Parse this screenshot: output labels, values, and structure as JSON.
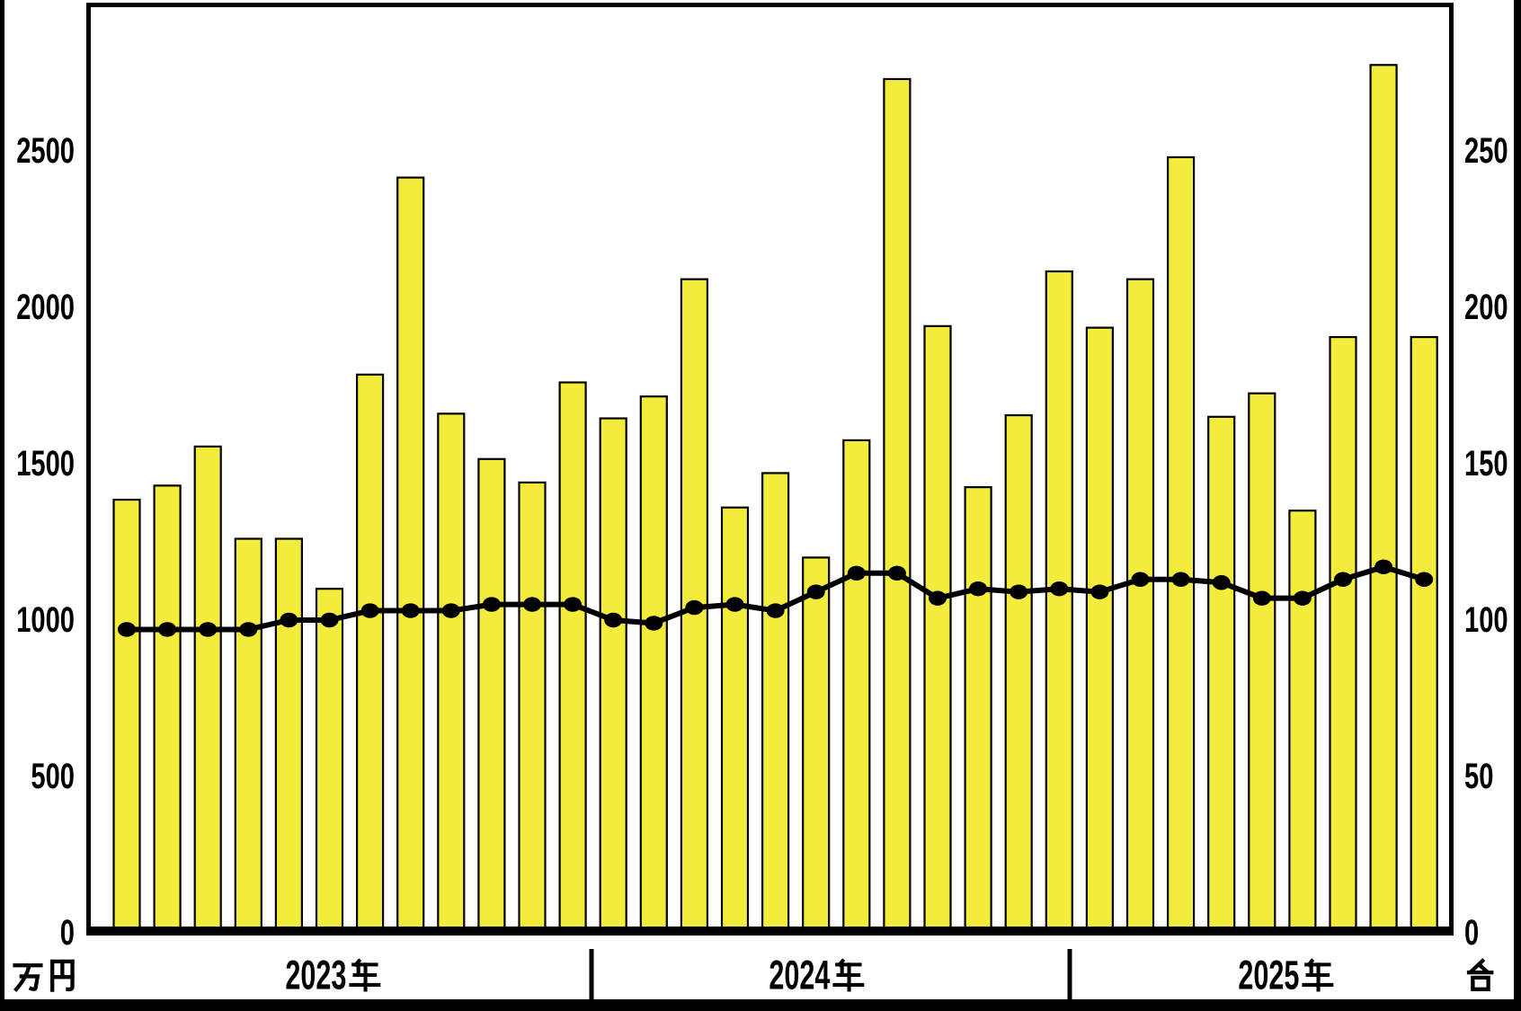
{
  "chart_data": {
    "type": "bar+line",
    "title": "",
    "left_axis": {
      "unit": "万円",
      "ticks": [
        0,
        500,
        1000,
        1500,
        2000,
        2500
      ],
      "min": 0,
      "max": 2970
    },
    "right_axis": {
      "unit": "台",
      "ticks": [
        0,
        50,
        100,
        150,
        200,
        250
      ],
      "min": 0,
      "max": 297
    },
    "grid": "off",
    "legend": "none",
    "bar_color": "#F4EC3C",
    "line_color": "#000000",
    "years": [
      {
        "label": "2023年",
        "bar_values": [
          1385,
          1430,
          1555,
          1260,
          1260,
          1100,
          1785,
          2415,
          1660,
          1515,
          1440,
          1760
        ],
        "line_values": [
          97,
          97,
          97,
          97,
          100,
          100,
          103,
          103,
          103,
          105,
          105,
          105
        ]
      },
      {
        "label": "2024年",
        "bar_values": [
          1645,
          1715,
          2090,
          1360,
          1470,
          1200,
          1575,
          2730,
          1940,
          1425,
          1655,
          2115
        ],
        "line_values": [
          100,
          99,
          104,
          105,
          103,
          109,
          115,
          115,
          107,
          110,
          109,
          110
        ]
      },
      {
        "label": "2025年",
        "bar_values": [
          1935,
          2090,
          2480,
          1650,
          1725,
          1350,
          1905,
          2775,
          1905
        ],
        "line_values": [
          109,
          113,
          113,
          112,
          107,
          107,
          113,
          117,
          113
        ]
      }
    ]
  }
}
